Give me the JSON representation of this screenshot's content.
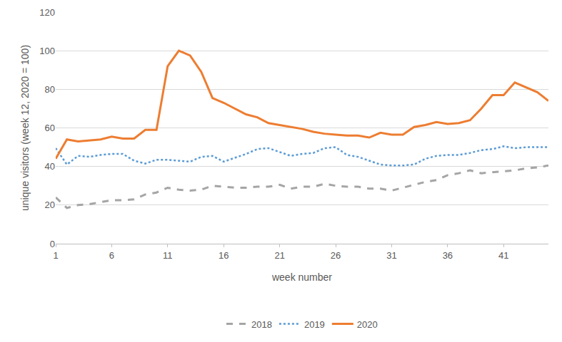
{
  "chart_data": {
    "type": "line",
    "x_label": "week number",
    "y_label": "unique visitors (week 12, 2020 = 100)",
    "x": [
      1,
      2,
      3,
      4,
      5,
      6,
      7,
      8,
      9,
      10,
      11,
      12,
      13,
      14,
      15,
      16,
      17,
      18,
      19,
      20,
      21,
      22,
      23,
      24,
      25,
      26,
      27,
      28,
      29,
      30,
      31,
      32,
      33,
      34,
      35,
      36,
      37,
      38,
      39,
      40,
      41,
      42,
      43,
      44,
      45
    ],
    "series": [
      {
        "name": "2018",
        "color": "#a5a5a5",
        "line_style": "dash",
        "values": [
          24,
          18.5,
          20,
          20.5,
          21.5,
          22.5,
          22.5,
          23,
          25.5,
          26.5,
          29,
          28,
          27.5,
          28,
          30,
          29.5,
          29,
          29,
          29.5,
          29.5,
          30.5,
          28.5,
          29.5,
          29.5,
          31,
          30,
          29.5,
          29.5,
          28.5,
          28.5,
          27.5,
          29,
          30.5,
          32,
          33,
          35.5,
          36.5,
          38,
          36.5,
          37,
          37.5,
          38,
          39,
          39.5,
          40.5
        ]
      },
      {
        "name": "2019",
        "color": "#5b9bd5",
        "line_style": "dot",
        "values": [
          49.5,
          41,
          45.5,
          45,
          46,
          46.5,
          46.5,
          43,
          41.5,
          43.5,
          43.5,
          43,
          42.5,
          45,
          45.5,
          42.5,
          44.5,
          46.5,
          49,
          49.5,
          47.5,
          45.5,
          46.5,
          47,
          49.5,
          50,
          46,
          45,
          43,
          41,
          40.5,
          40.5,
          41,
          44,
          45.5,
          46,
          46,
          47,
          48.5,
          49,
          50.5,
          49.5,
          50,
          50,
          50
        ]
      },
      {
        "name": "2020",
        "color": "#ed7d31",
        "line_style": "solid",
        "values": [
          44,
          54,
          53,
          53.5,
          54,
          55.5,
          54.5,
          54.5,
          59,
          59,
          92,
          100,
          97.5,
          89,
          75.5,
          73,
          70,
          67,
          65.5,
          62.5,
          61.5,
          60.5,
          59.5,
          58,
          57,
          56.5,
          56,
          56,
          55,
          57.5,
          56.5,
          56.5,
          60.5,
          61.5,
          63,
          62,
          62.5,
          64,
          70,
          77,
          77,
          83.5,
          81,
          78.5,
          74
        ]
      }
    ],
    "xlim": [
      1,
      45
    ],
    "xticks": [
      1,
      6,
      11,
      16,
      21,
      26,
      31,
      36,
      41
    ],
    "ylim": [
      0,
      120
    ],
    "yticks": [
      0,
      20,
      40,
      60,
      80,
      100,
      120
    ],
    "grid": true,
    "legend": "bottom"
  }
}
